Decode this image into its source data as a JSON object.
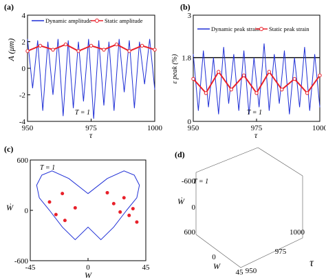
{
  "chart_data": [
    {
      "panel": "(a)",
      "type": "line",
      "xlabel": "τ",
      "ylabel": "A (μm)",
      "xlim": [
        950,
        1000
      ],
      "ylim": [
        -4,
        4
      ],
      "xticks": [
        "950",
        "975",
        "1000"
      ],
      "yticks": [
        "-4",
        "-2",
        "0",
        "2",
        "4"
      ],
      "annotation": "T = 1",
      "legend_placement": "top",
      "series": [
        {
          "name": "Dynamic amplitude",
          "color": "#1f2fd6",
          "x": [
            950,
            952,
            954,
            956,
            958,
            960,
            962,
            964,
            966,
            968,
            970,
            972,
            974,
            976,
            978,
            980,
            982,
            984,
            986,
            988,
            990,
            992,
            994,
            996,
            998,
            1000
          ],
          "values": [
            2.2,
            -1.5,
            2.1,
            -3.2,
            2.0,
            -2.0,
            2.2,
            -3.6,
            2.1,
            -3.0,
            2.0,
            -2.5,
            2.2,
            -3.8,
            2.1,
            -2.8,
            2.0,
            -3.2,
            2.2,
            -1.8,
            2.1,
            -3.0,
            2.0,
            -1.2,
            2.2,
            -1.6
          ]
        },
        {
          "name": "Static amplitude",
          "color": "#e8202a",
          "x": [
            950,
            955,
            960,
            965,
            970,
            975,
            980,
            985,
            990,
            995,
            1000
          ],
          "values": [
            1.3,
            1.7,
            1.4,
            1.8,
            1.3,
            1.7,
            1.4,
            1.8,
            1.3,
            1.7,
            1.4
          ]
        }
      ]
    },
    {
      "panel": "(b)",
      "type": "line",
      "xlabel": "τ",
      "ylabel": "ε peak (%)",
      "xlim": [
        950,
        1000
      ],
      "ylim": [
        0,
        3
      ],
      "xticks": [
        "950",
        "975",
        "1000"
      ],
      "yticks": [
        "0",
        "1.8",
        "3"
      ],
      "reference_line": 1.8,
      "annotation": "T = 1",
      "legend_placement": "top",
      "series": [
        {
          "name": "Dynamic peak strain",
          "color": "#1f2fd6",
          "x": [
            950,
            952,
            954,
            956,
            958,
            960,
            962,
            964,
            966,
            968,
            970,
            972,
            974,
            976,
            978,
            980,
            982,
            984,
            986,
            988,
            990,
            992,
            994,
            996,
            998,
            1000
          ],
          "values": [
            1.9,
            0.3,
            2.0,
            0.4,
            1.8,
            0.2,
            2.1,
            0.5,
            1.9,
            0.3,
            2.0,
            0.2,
            1.8,
            0.4,
            2.2,
            0.3,
            1.9,
            0.5,
            2.0,
            0.2,
            1.8,
            0.4,
            2.1,
            0.3,
            1.9,
            0.4
          ]
        },
        {
          "name": "Static peak strain",
          "color": "#e8202a",
          "x": [
            950,
            955,
            960,
            965,
            970,
            975,
            980,
            985,
            990,
            995,
            1000
          ],
          "values": [
            1.2,
            0.8,
            1.4,
            0.9,
            1.3,
            0.8,
            1.4,
            0.9,
            1.2,
            0.8,
            1.3
          ]
        }
      ]
    },
    {
      "panel": "(c)",
      "type": "line",
      "xlabel": "W",
      "ylabel": "Ẇ",
      "xlim": [
        -45,
        45
      ],
      "ylim": [
        -600,
        600
      ],
      "xticks": [
        "-45",
        "0",
        "45"
      ],
      "yticks": [
        "-600",
        "0",
        "600"
      ],
      "annotation": "T = 1",
      "series": [
        {
          "name": "",
          "color": "#1f2fd6",
          "x": [
            30,
            38,
            40,
            36,
            28,
            15,
            0,
            -15,
            -28,
            -36,
            -40,
            -38,
            -30,
            -20,
            -10,
            0,
            10,
            20,
            30
          ],
          "values": [
            0,
            150,
            300,
            420,
            470,
            380,
            200,
            380,
            470,
            420,
            300,
            150,
            0,
            -200,
            -350,
            -200,
            -350,
            -200,
            0
          ]
        }
      ],
      "points": {
        "name": "",
        "color": "#e8202a",
        "x": [
          -30,
          -25,
          -20,
          -18,
          -10,
          20,
          25,
          28,
          32,
          35,
          38,
          15
        ],
        "values": [
          100,
          -50,
          200,
          -120,
          30,
          80,
          -20,
          150,
          -60,
          20,
          -140,
          210
        ]
      }
    },
    {
      "panel": "(d)",
      "type": "line",
      "xlabel": "W",
      "ylabel": "Ẇ",
      "zlabel": "τ",
      "xlim": [
        -45,
        45
      ],
      "ylim": [
        -600,
        600
      ],
      "zlim": [
        950,
        1000
      ],
      "xticks": [
        "0",
        "45"
      ],
      "yticks": [
        "-600",
        "0",
        "600"
      ],
      "zticks": [
        "950",
        "975",
        "1000"
      ],
      "annotation": "T = 1",
      "series": [
        {
          "name": "",
          "color": "#1f2fd6",
          "x": [],
          "values": []
        }
      ]
    }
  ]
}
